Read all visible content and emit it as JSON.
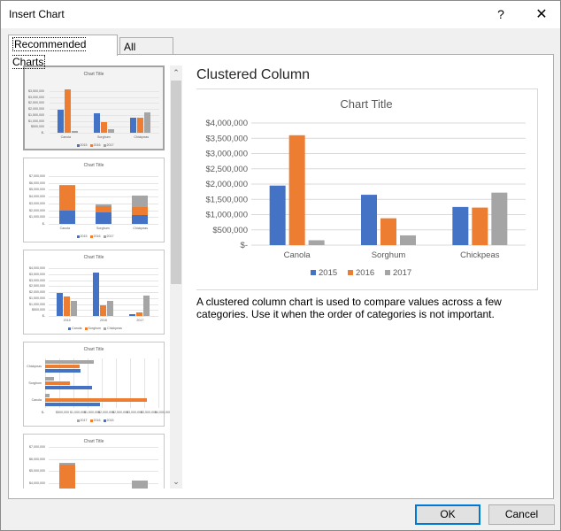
{
  "window": {
    "title": "Insert Chart",
    "help_label": "?",
    "close_label": "✕"
  },
  "tabs": [
    {
      "label": "Recommended Charts",
      "active": true
    },
    {
      "label": "All Charts",
      "active": false
    }
  ],
  "preview": {
    "heading": "Clustered Column",
    "description": "A clustered column chart is used to compare values across a few categories. Use it when the order of categories is not important."
  },
  "chart_data": {
    "type": "bar",
    "title": "Chart Title",
    "categories": [
      "Canola",
      "Sorghum",
      "Chickpeas"
    ],
    "series": [
      {
        "name": "2015",
        "values": [
          1950000,
          1650000,
          1250000
        ],
        "color": "#4472c4"
      },
      {
        "name": "2016",
        "values": [
          3600000,
          880000,
          1230000
        ],
        "color": "#ed7d31"
      },
      {
        "name": "2017",
        "values": [
          160000,
          320000,
          1720000
        ],
        "color": "#a5a5a5"
      }
    ],
    "y_ticks": [
      "$-",
      "$500,000",
      "$1,000,000",
      "$1,500,000",
      "$2,000,000",
      "$2,500,000",
      "$3,000,000",
      "$3,500,000",
      "$4,000,000"
    ],
    "ylim": [
      0,
      4000000
    ],
    "legend_position": "bottom",
    "grid": true
  },
  "thumbnails": {
    "title": "Chart Title",
    "categories": [
      "Canola",
      "Sorghum",
      "Chickpeas"
    ],
    "series_names": [
      "2015",
      "2016",
      "2017"
    ],
    "col_ticks": [
      "$-",
      "$500,000",
      "$1,000,000",
      "$1,500,000",
      "$2,000,000",
      "$2,500,000",
      "$3,000,000",
      "$3,500,000"
    ],
    "stack_ticks": [
      "$-",
      "$1,000,000",
      "$2,000,000",
      "$3,000,000",
      "$4,000,000",
      "$5,000,000",
      "$6,000,000",
      "$7,000,000"
    ],
    "transposed_ticks": [
      "$-",
      "$500,000",
      "$1,000,000",
      "$1,500,000",
      "$2,000,000",
      "$2,500,000",
      "$3,000,000",
      "$3,500,000",
      "$4,000,000"
    ],
    "years": [
      "2015",
      "2016",
      "2017"
    ],
    "bar_ticks": [
      "$-",
      "$500,000",
      "$1,000,000",
      "$1,500,000",
      "$2,000,000",
      "$2,500,000",
      "$3,000,000",
      "$3,500,000",
      "$4,000,000"
    ],
    "bar_legend": [
      "2017",
      "2016",
      "2015"
    ],
    "area_ticks": [
      "$-",
      "$1,000,000",
      "$2,000,000",
      "$3,000,000",
      "$4,000,000",
      "$5,000,000",
      "$6,000,000",
      "$7,000,000"
    ]
  },
  "buttons": {
    "ok": "OK",
    "cancel": "Cancel"
  },
  "scrollbar": {
    "up": "⌃",
    "down": "⌄"
  }
}
